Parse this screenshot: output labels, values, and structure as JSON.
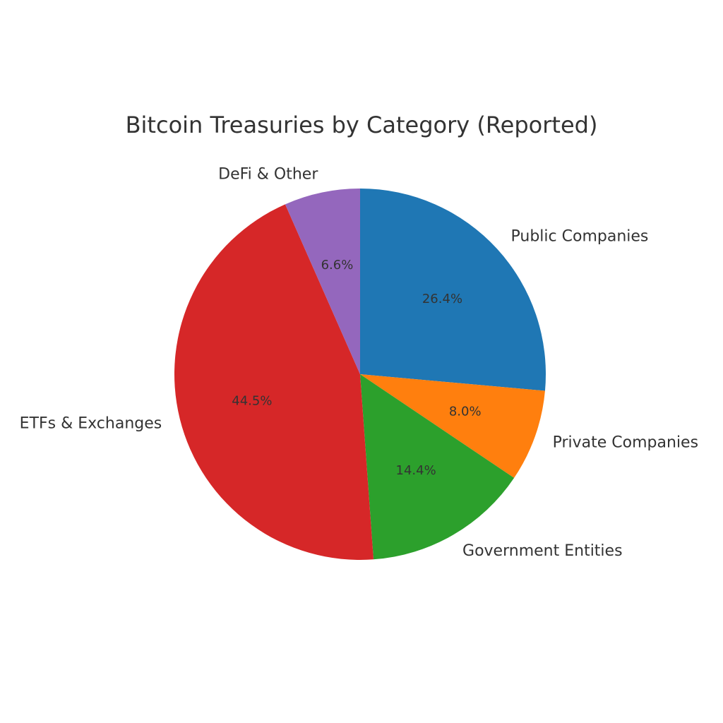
{
  "chart_data": {
    "type": "pie",
    "title": "Bitcoin Treasuries by Category (Reported)",
    "start_angle_deg": 90,
    "direction": "clockwise",
    "slices": [
      {
        "label": "Public Companies",
        "value": 26.4,
        "pct_label": "26.4%",
        "color": "#1f77b4"
      },
      {
        "label": "Private Companies",
        "value": 8.0,
        "pct_label": "8.0%",
        "color": "#ff7f0e"
      },
      {
        "label": "Government Entities",
        "value": 14.4,
        "pct_label": "14.4%",
        "color": "#2ca02c"
      },
      {
        "label": "ETFs & Exchanges",
        "value": 44.5,
        "pct_label": "44.5%",
        "color": "#d62728"
      },
      {
        "label": "DeFi & Other",
        "value": 6.6,
        "pct_label": "6.6%",
        "color": "#9467bd"
      }
    ]
  }
}
